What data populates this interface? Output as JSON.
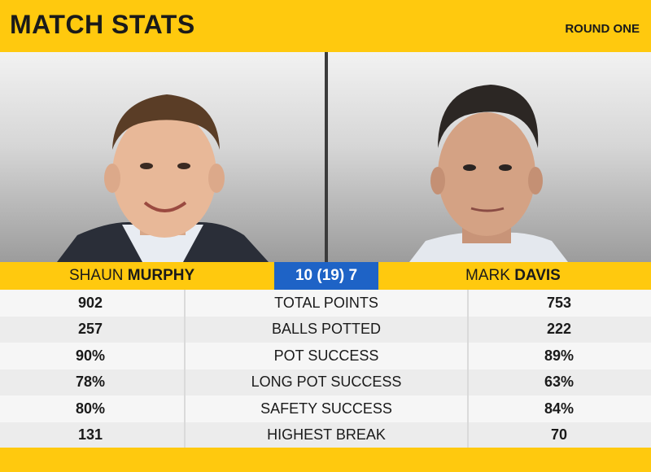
{
  "header": {
    "title": "MATCH STATS",
    "round": "ROUND ONE"
  },
  "players": {
    "left": {
      "first": "SHAUN",
      "last": "MURPHY"
    },
    "right": {
      "first": "MARK",
      "last": "DAVIS"
    }
  },
  "score": "10 (19)  7",
  "stats": [
    {
      "left": "902",
      "label": "TOTAL POINTS",
      "right": "753"
    },
    {
      "left": "257",
      "label": "BALLS POTTED",
      "right": "222"
    },
    {
      "left": "90%",
      "label": "POT SUCCESS",
      "right": "89%"
    },
    {
      "left": "78%",
      "label": "LONG POT SUCCESS",
      "right": "63%"
    },
    {
      "left": "80%",
      "label": "SAFETY SUCCESS",
      "right": "84%"
    },
    {
      "left": "131",
      "label": "HIGHEST BREAK",
      "right": "70"
    }
  ],
  "colors": {
    "brand_yellow": "#ffc90e",
    "score_blue": "#1e63c6"
  }
}
